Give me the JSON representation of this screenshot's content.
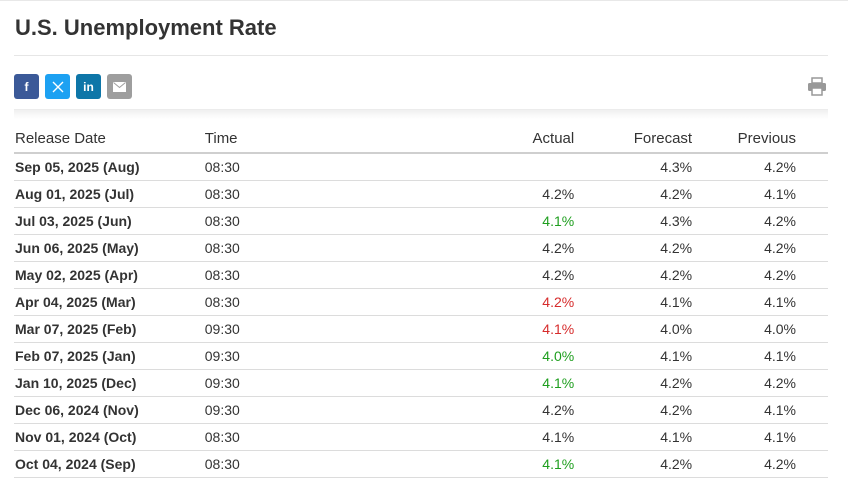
{
  "title": "U.S. Unemployment Rate",
  "share": {
    "facebook": {
      "icon": "facebook-icon",
      "label": "f",
      "color": "#3b5998"
    },
    "x": {
      "icon": "x-icon",
      "color": "#1da1f2"
    },
    "linkedin": {
      "icon": "linkedin-icon",
      "label": "in",
      "color": "#0e76a8"
    },
    "email": {
      "icon": "envelope-icon",
      "color": "#9e9e9e"
    },
    "print": {
      "icon": "printer-icon",
      "color": "#999999"
    }
  },
  "colors": {
    "positive": "#1e9e1e",
    "negative": "#d62b2b"
  },
  "table": {
    "headers": {
      "release_date": "Release Date",
      "time": "Time",
      "actual": "Actual",
      "forecast": "Forecast",
      "previous": "Previous"
    },
    "rows": [
      {
        "release_date": "Sep 05, 2025 (Aug)",
        "time": "08:30",
        "actual": "",
        "actual_status": "neutral",
        "forecast": "4.3%",
        "previous": "4.2%"
      },
      {
        "release_date": "Aug 01, 2025 (Jul)",
        "time": "08:30",
        "actual": "4.2%",
        "actual_status": "neutral",
        "forecast": "4.2%",
        "previous": "4.1%"
      },
      {
        "release_date": "Jul 03, 2025 (Jun)",
        "time": "08:30",
        "actual": "4.1%",
        "actual_status": "positive",
        "forecast": "4.3%",
        "previous": "4.2%"
      },
      {
        "release_date": "Jun 06, 2025 (May)",
        "time": "08:30",
        "actual": "4.2%",
        "actual_status": "neutral",
        "forecast": "4.2%",
        "previous": "4.2%"
      },
      {
        "release_date": "May 02, 2025 (Apr)",
        "time": "08:30",
        "actual": "4.2%",
        "actual_status": "neutral",
        "forecast": "4.2%",
        "previous": "4.2%"
      },
      {
        "release_date": "Apr 04, 2025 (Mar)",
        "time": "08:30",
        "actual": "4.2%",
        "actual_status": "negative",
        "forecast": "4.1%",
        "previous": "4.1%"
      },
      {
        "release_date": "Mar 07, 2025 (Feb)",
        "time": "09:30",
        "actual": "4.1%",
        "actual_status": "negative",
        "forecast": "4.0%",
        "previous": "4.0%"
      },
      {
        "release_date": "Feb 07, 2025 (Jan)",
        "time": "09:30",
        "actual": "4.0%",
        "actual_status": "positive",
        "forecast": "4.1%",
        "previous": "4.1%"
      },
      {
        "release_date": "Jan 10, 2025 (Dec)",
        "time": "09:30",
        "actual": "4.1%",
        "actual_status": "positive",
        "forecast": "4.2%",
        "previous": "4.2%"
      },
      {
        "release_date": "Dec 06, 2024 (Nov)",
        "time": "09:30",
        "actual": "4.2%",
        "actual_status": "neutral",
        "forecast": "4.2%",
        "previous": "4.1%"
      },
      {
        "release_date": "Nov 01, 2024 (Oct)",
        "time": "08:30",
        "actual": "4.1%",
        "actual_status": "neutral",
        "forecast": "4.1%",
        "previous": "4.1%"
      },
      {
        "release_date": "Oct 04, 2024 (Sep)",
        "time": "08:30",
        "actual": "4.1%",
        "actual_status": "positive",
        "forecast": "4.2%",
        "previous": "4.2%"
      }
    ]
  }
}
